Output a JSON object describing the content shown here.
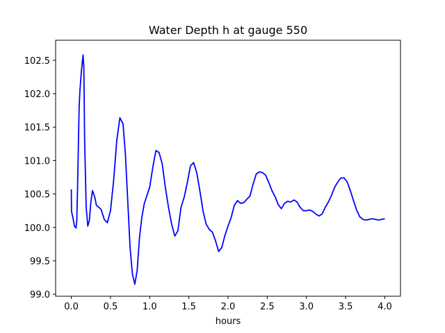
{
  "chart_data": {
    "type": "line",
    "title": "Water Depth h at gauge 550",
    "xlabel": "hours",
    "ylabel": "",
    "xlim": [
      -0.2,
      4.2
    ],
    "ylim": [
      98.97,
      102.8
    ],
    "xticks": [
      0.0,
      0.5,
      1.0,
      1.5,
      2.0,
      2.5,
      3.0,
      3.5,
      4.0
    ],
    "xtick_labels": [
      "0.0",
      "0.5",
      "1.0",
      "1.5",
      "2.0",
      "2.5",
      "3.0",
      "3.5",
      "4.0"
    ],
    "yticks": [
      99.0,
      99.5,
      100.0,
      100.5,
      101.0,
      101.5,
      102.0,
      102.5
    ],
    "ytick_labels": [
      "99.0",
      "99.5",
      "100.0",
      "100.5",
      "101.0",
      "101.5",
      "102.0",
      "102.5"
    ],
    "grid": false,
    "series": [
      {
        "color": "#0000ff",
        "x": [
          0.0,
          0.003,
          0.006,
          0.01,
          0.02,
          0.04,
          0.06,
          0.07,
          0.08,
          0.09,
          0.1,
          0.11,
          0.13,
          0.15,
          0.16,
          0.17,
          0.19,
          0.21,
          0.23,
          0.25,
          0.27,
          0.3,
          0.32,
          0.35,
          0.38,
          0.42,
          0.46,
          0.5,
          0.54,
          0.58,
          0.62,
          0.66,
          0.69,
          0.72,
          0.75,
          0.78,
          0.81,
          0.84,
          0.87,
          0.9,
          0.93,
          0.96,
          1.0,
          1.04,
          1.08,
          1.12,
          1.16,
          1.2,
          1.24,
          1.28,
          1.32,
          1.36,
          1.4,
          1.44,
          1.48,
          1.52,
          1.56,
          1.6,
          1.64,
          1.68,
          1.72,
          1.76,
          1.8,
          1.84,
          1.88,
          1.92,
          1.96,
          2.0,
          2.04,
          2.08,
          2.12,
          2.16,
          2.2,
          2.24,
          2.28,
          2.32,
          2.36,
          2.4,
          2.44,
          2.48,
          2.52,
          2.56,
          2.6,
          2.64,
          2.68,
          2.72,
          2.76,
          2.8,
          2.84,
          2.88,
          2.92,
          2.96,
          3.0,
          3.04,
          3.08,
          3.12,
          3.16,
          3.2,
          3.24,
          3.28,
          3.32,
          3.36,
          3.4,
          3.44,
          3.48,
          3.52,
          3.56,
          3.6,
          3.64,
          3.68,
          3.72,
          3.76,
          3.8,
          3.84,
          3.88,
          3.92,
          3.96,
          4.0
        ],
        "y": [
          100.57,
          100.24,
          100.22,
          100.2,
          100.15,
          100.02,
          99.99,
          100.1,
          100.6,
          101.2,
          101.8,
          102.05,
          102.35,
          102.58,
          102.4,
          101.3,
          100.3,
          100.02,
          100.1,
          100.38,
          100.55,
          100.45,
          100.33,
          100.3,
          100.27,
          100.12,
          100.07,
          100.25,
          100.7,
          101.3,
          101.64,
          101.55,
          101.1,
          100.4,
          99.7,
          99.3,
          99.15,
          99.35,
          99.85,
          100.15,
          100.35,
          100.46,
          100.6,
          100.9,
          101.15,
          101.12,
          100.95,
          100.6,
          100.3,
          100.05,
          99.87,
          99.95,
          100.3,
          100.45,
          100.67,
          100.92,
          100.97,
          100.82,
          100.55,
          100.25,
          100.05,
          99.97,
          99.93,
          99.8,
          99.64,
          99.7,
          99.88,
          100.02,
          100.15,
          100.33,
          100.4,
          100.36,
          100.37,
          100.42,
          100.47,
          100.65,
          100.8,
          100.83,
          100.82,
          100.78,
          100.67,
          100.55,
          100.46,
          100.34,
          100.28,
          100.36,
          100.39,
          100.38,
          100.41,
          100.38,
          100.3,
          100.25,
          100.25,
          100.26,
          100.24,
          100.2,
          100.17,
          100.2,
          100.3,
          100.38,
          100.48,
          100.6,
          100.68,
          100.74,
          100.74,
          100.68,
          100.55,
          100.4,
          100.26,
          100.16,
          100.12,
          100.11,
          100.12,
          100.13,
          100.12,
          100.11,
          100.12,
          100.13
        ]
      }
    ]
  }
}
